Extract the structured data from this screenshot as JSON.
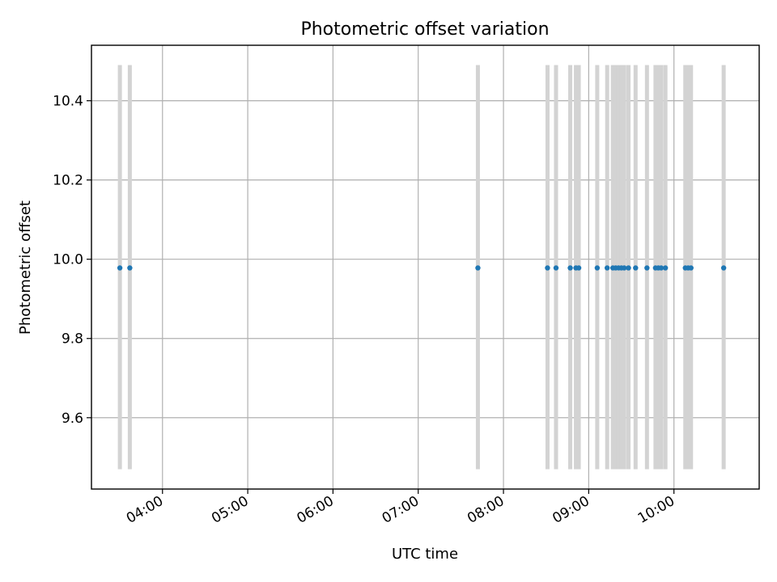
{
  "chart_data": {
    "type": "scatter",
    "title": "Photometric offset variation",
    "xlabel": "UTC time",
    "ylabel": "Photometric offset",
    "x_tick_labels": [
      "04:00",
      "05:00",
      "06:00",
      "07:00",
      "08:00",
      "09:00",
      "10:00"
    ],
    "y_tick_labels": [
      "9.6",
      "9.8",
      "10.0",
      "10.2",
      "10.4"
    ],
    "y_ticks": [
      9.6,
      9.8,
      10.0,
      10.2,
      10.4
    ],
    "xlim": [
      "03:10",
      "11:00"
    ],
    "ylim": [
      9.42,
      10.54
    ],
    "grid": true,
    "point_color": "#1f77b4",
    "band_color": "#d3d3d3",
    "band_range": [
      9.47,
      10.49
    ],
    "x": [
      "03:30",
      "03:37",
      "07:42",
      "08:31",
      "08:37",
      "08:47",
      "08:51",
      "08:53",
      "09:06",
      "09:13",
      "09:17",
      "09:19",
      "09:21",
      "09:23",
      "09:25",
      "09:28",
      "09:33",
      "09:41",
      "09:47",
      "09:49",
      "09:51",
      "09:54",
      "10:08",
      "10:10",
      "10:12",
      "10:35"
    ],
    "y": [
      9.978,
      9.978,
      9.978,
      9.978,
      9.978,
      9.978,
      9.978,
      9.978,
      9.978,
      9.978,
      9.978,
      9.978,
      9.978,
      9.978,
      9.978,
      9.978,
      9.978,
      9.978,
      9.978,
      9.978,
      9.978,
      9.978,
      9.978,
      9.978,
      9.978,
      9.978
    ]
  }
}
